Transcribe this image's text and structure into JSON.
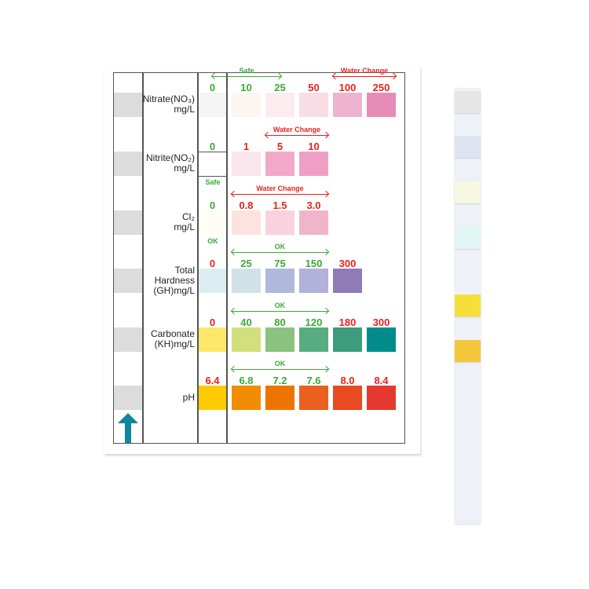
{
  "colors": {
    "ok": "#3aaa35",
    "bad": "#e8221c",
    "arrow": "#0e86a0"
  },
  "rows": [
    {
      "label": [
        "Nitrate(NO₃)",
        "mg/L"
      ],
      "swatches": [
        {
          "value": "0",
          "level": "ok",
          "color": "#f5f5f5"
        },
        {
          "value": "10",
          "level": "ok",
          "color": "#fdf5f0"
        },
        {
          "value": "25",
          "level": "ok",
          "color": "#fcebef"
        },
        {
          "value": "50",
          "level": "bad",
          "color": "#f9dde6"
        },
        {
          "value": "100",
          "level": "bad",
          "color": "#eeb3cf"
        },
        {
          "value": "250",
          "level": "bad",
          "color": "#e68db7"
        }
      ],
      "ranges": [
        {
          "text": "Safe",
          "level": "ok",
          "from": 0,
          "to": 2
        },
        {
          "text": "Water Change",
          "level": "bad",
          "from": 4,
          "to": 5
        }
      ]
    },
    {
      "label": [
        "Nitrite(NO₂)",
        "mg/L"
      ],
      "swatches": [
        {
          "value": "0",
          "level": "ok",
          "color": null
        },
        {
          "value": "1",
          "level": "bad",
          "color": "#fbe6ee"
        },
        {
          "value": "5",
          "level": "bad",
          "color": "#f2a8c9"
        },
        {
          "value": "10",
          "level": "bad",
          "color": "#ef9fc3"
        }
      ],
      "ranges": [
        {
          "text": "Water Change",
          "level": "bad",
          "from": 2,
          "to": 3
        }
      ],
      "note_below": "Safe"
    },
    {
      "label": [
        "Cl₂",
        "mg/L"
      ],
      "swatches": [
        {
          "value": "0",
          "level": "ok",
          "color": "#fffdf4"
        },
        {
          "value": "0.8",
          "level": "bad",
          "color": "#fce3e0"
        },
        {
          "value": "1.5",
          "level": "bad",
          "color": "#f8d2dc"
        },
        {
          "value": "3.0",
          "level": "bad",
          "color": "#f1b5cb"
        }
      ],
      "ranges": [
        {
          "text": "Water Change",
          "level": "bad",
          "from": 1,
          "to": 3
        }
      ],
      "note_below": "OK"
    },
    {
      "label": [
        "Total",
        "Hardness",
        "(GH)mg/L"
      ],
      "swatches": [
        {
          "value": "0",
          "level": "bad",
          "color": "#dcedf1"
        },
        {
          "value": "25",
          "level": "ok",
          "color": "#d0e1e8"
        },
        {
          "value": "75",
          "level": "ok",
          "color": "#b0b8dc"
        },
        {
          "value": "150",
          "level": "ok",
          "color": "#b1b1da"
        },
        {
          "value": "300",
          "level": "bad",
          "color": "#8e7bb8"
        }
      ],
      "ranges": [
        {
          "text": "OK",
          "level": "ok",
          "from": 1,
          "to": 3
        }
      ]
    },
    {
      "label": [
        "Carbonate",
        "(KH)mg/L"
      ],
      "swatches": [
        {
          "value": "0",
          "level": "bad",
          "color": "#fde86a"
        },
        {
          "value": "40",
          "level": "ok",
          "color": "#d1df7c"
        },
        {
          "value": "80",
          "level": "ok",
          "color": "#8ac280"
        },
        {
          "value": "120",
          "level": "ok",
          "color": "#57ad7f"
        },
        {
          "value": "180",
          "level": "bad",
          "color": "#3d9c7c"
        },
        {
          "value": "300",
          "level": "bad",
          "color": "#008c8b"
        }
      ],
      "ranges": [
        {
          "text": "OK",
          "level": "ok",
          "from": 1,
          "to": 3
        }
      ]
    },
    {
      "label": [
        "pH"
      ],
      "swatches": [
        {
          "value": "6.4",
          "level": "bad",
          "color": "#fdcb00"
        },
        {
          "value": "6.8",
          "level": "ok",
          "color": "#f28c00"
        },
        {
          "value": "7.2",
          "level": "ok",
          "color": "#ee7402"
        },
        {
          "value": "7.6",
          "level": "ok",
          "color": "#ea6020"
        },
        {
          "value": "8.0",
          "level": "bad",
          "color": "#e84a22"
        },
        {
          "value": "8.4",
          "level": "bad",
          "color": "#e53930"
        }
      ],
      "ranges": [
        {
          "text": "OK",
          "level": "ok",
          "from": 1,
          "to": 3
        }
      ]
    }
  ],
  "strip": {
    "pads": [
      "#e6e6e6",
      "#dde4ef",
      "#f8f8e2",
      "#e2f6f3",
      "#f7df3a",
      "#f4c73a"
    ]
  }
}
